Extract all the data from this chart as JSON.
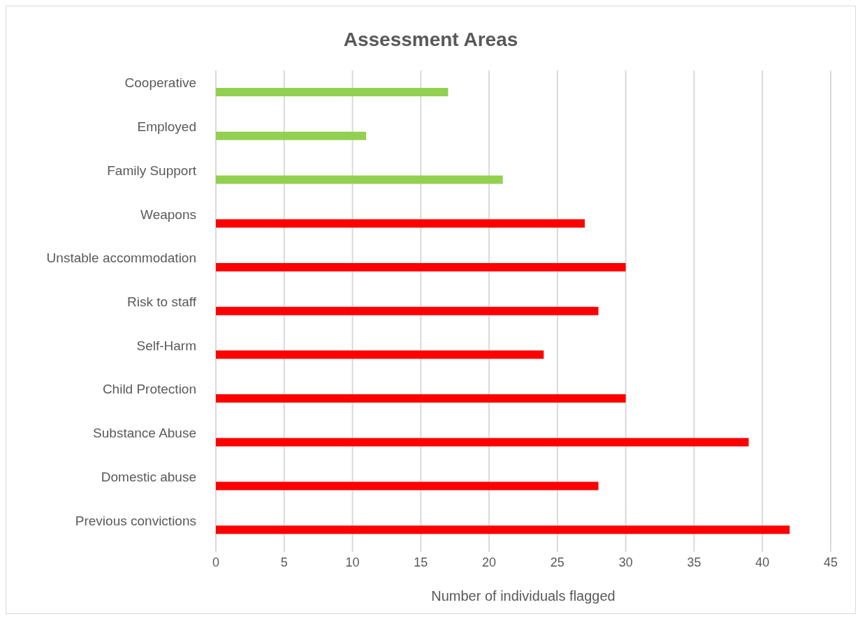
{
  "chart_data": {
    "type": "bar",
    "orientation": "horizontal",
    "title": "Assessment Areas",
    "xlabel": "Number of individuals flagged",
    "categories": [
      "Cooperative",
      "Employed",
      "Family Support",
      "Weapons",
      "Unstable accommodation",
      "Risk to staff",
      "Self-Harm",
      "Child Protection",
      "Substance Abuse",
      "Domestic abuse",
      "Previous convictions"
    ],
    "values": [
      17,
      11,
      21,
      27,
      30,
      28,
      24,
      30,
      39,
      28,
      42
    ],
    "colors": [
      "#92d050",
      "#92d050",
      "#92d050",
      "#ff0000",
      "#ff0000",
      "#ff0000",
      "#ff0000",
      "#ff0000",
      "#ff0000",
      "#ff0000",
      "#ff0000"
    ],
    "xlim": [
      0,
      45
    ],
    "xticks": [
      0,
      5,
      10,
      15,
      20,
      25,
      30,
      35,
      40,
      45
    ],
    "grid": "x",
    "legend": false
  }
}
